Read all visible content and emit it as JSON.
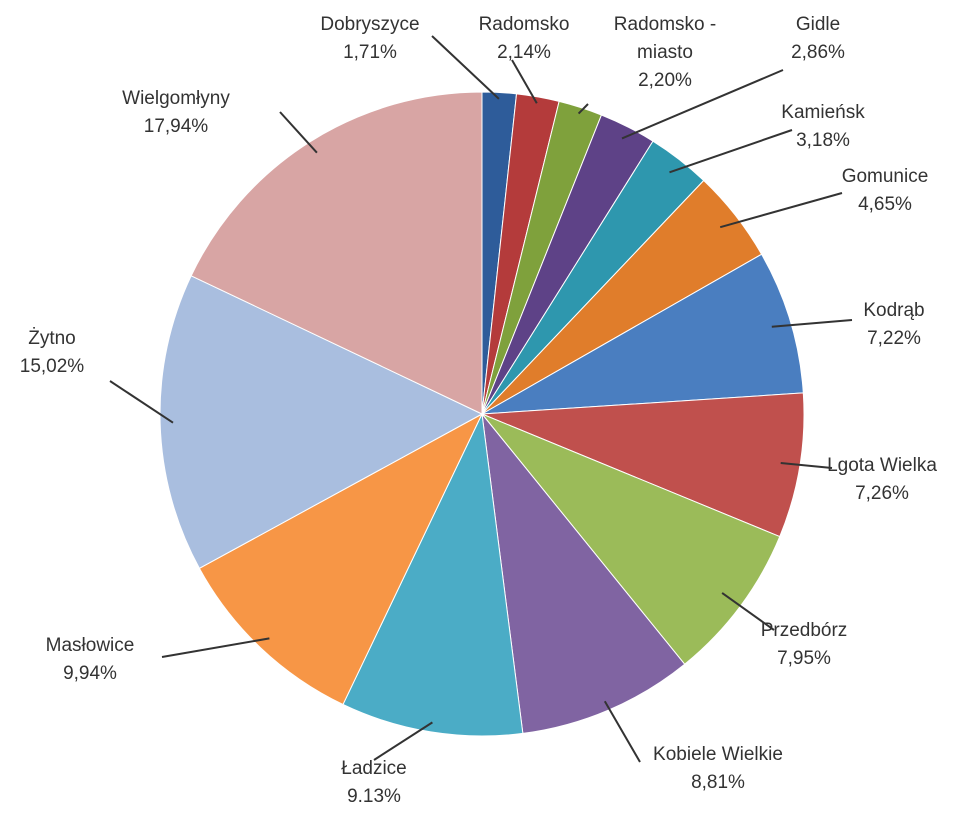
{
  "chart_data": {
    "type": "pie",
    "start_angle_deg": 0,
    "direction": "clockwise",
    "slices": [
      {
        "label": "Dobryszyce",
        "value_text": "1,71%",
        "value": 1.71,
        "color": "#2E5C9A"
      },
      {
        "label": "Radomsko",
        "value_text": "2,14%",
        "value": 2.14,
        "color": "#B43B3B"
      },
      {
        "label": "Radomsko - miasto",
        "label_lines": [
          "Radomsko -",
          "miasto"
        ],
        "value_text": "2,20%",
        "value": 2.2,
        "color": "#7FA13C"
      },
      {
        "label": "Gidle",
        "value_text": "2,86%",
        "value": 2.86,
        "color": "#5E4287"
      },
      {
        "label": "Kamieńsk",
        "value_text": "3,18%",
        "value": 3.18,
        "color": "#2E97AE"
      },
      {
        "label": "Gomunice",
        "value_text": "4,65%",
        "value": 4.65,
        "color": "#E07D2B"
      },
      {
        "label": "Kodrąb",
        "value_text": "7,22%",
        "value": 7.22,
        "color": "#4A7EC0"
      },
      {
        "label": "Lgota Wielka",
        "value_text": "7,26%",
        "value": 7.26,
        "color": "#C0504D"
      },
      {
        "label": "Przedbórz",
        "value_text": "7,95%",
        "value": 7.95,
        "color": "#9BBB59"
      },
      {
        "label": "Kobiele Wielkie",
        "value_text": "8,81%",
        "value": 8.81,
        "color": "#8064A2"
      },
      {
        "label": "Ładzice",
        "value_text": "9.13%",
        "value": 9.13,
        "color": "#4BACC6"
      },
      {
        "label": "Masłowice",
        "value_text": "9,94%",
        "value": 9.94,
        "color": "#F79646"
      },
      {
        "label": "Żytno",
        "value_text": "15,02%",
        "value": 15.02,
        "color": "#A9BEDF"
      },
      {
        "label": "Wielgomłyny",
        "value_text": "17,94%",
        "value": 17.94,
        "color": "#D8A5A4"
      }
    ]
  }
}
